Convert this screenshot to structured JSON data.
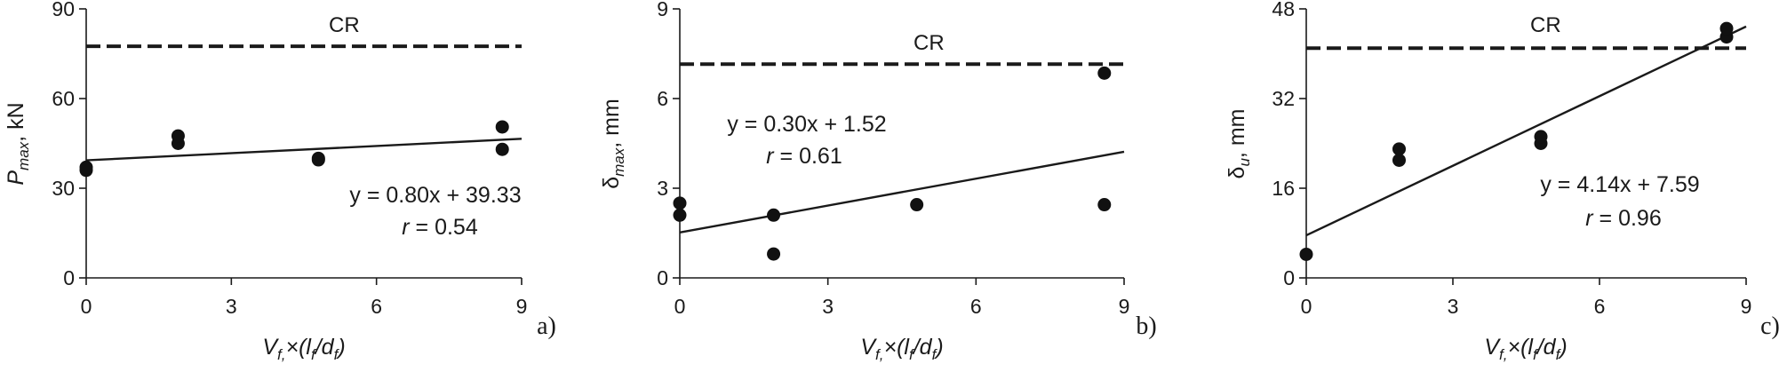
{
  "chart_data": [
    {
      "type": "scatter",
      "panel_label": "a)",
      "ylabel": {
        "sym": "P",
        "sub": "max",
        "unit": ", kN"
      },
      "xlabel": {
        "pre": "V",
        "sub1": "f,",
        "mid": "×(l",
        "sub2": "f",
        "mid2": "/d",
        "sub3": "f",
        "post": ")"
      },
      "xlim": [
        0,
        9
      ],
      "ylim": [
        0,
        90
      ],
      "xticks": [
        0,
        3,
        6,
        9
      ],
      "yticks": [
        0,
        30,
        60,
        90
      ],
      "points": [
        [
          0,
          36
        ],
        [
          0,
          37
        ],
        [
          1.9,
          45
        ],
        [
          1.9,
          47.5
        ],
        [
          4.8,
          39.5
        ],
        [
          4.8,
          40
        ],
        [
          8.6,
          43
        ],
        [
          8.6,
          50.5
        ]
      ],
      "reference": {
        "label": "CR",
        "y": 77.5
      },
      "fit": {
        "slope": 0.8,
        "intercept": 39.33,
        "equation": "y = 0.80x + 39.33",
        "r_label": "r",
        "r_value": " = 0.54"
      }
    },
    {
      "type": "scatter",
      "panel_label": "b)",
      "ylabel": {
        "sym": "δ",
        "sub": "max",
        "unit": ", mm"
      },
      "xlabel": {
        "pre": "V",
        "sub1": "f,",
        "mid": "×(l",
        "sub2": "f",
        "mid2": "/d",
        "sub3": "f",
        "post": ")"
      },
      "xlim": [
        0,
        9
      ],
      "ylim": [
        0,
        9
      ],
      "xticks": [
        0,
        3,
        6,
        9
      ],
      "yticks": [
        0,
        3,
        6,
        9
      ],
      "points": [
        [
          0,
          2.1
        ],
        [
          0,
          2.5
        ],
        [
          1.9,
          0.8
        ],
        [
          1.9,
          2.1
        ],
        [
          4.8,
          2.45
        ],
        [
          8.6,
          2.45
        ],
        [
          8.6,
          6.85
        ]
      ],
      "reference": {
        "label": "CR",
        "y": 7.15
      },
      "fit": {
        "slope": 0.3,
        "intercept": 1.52,
        "equation": "y = 0.30x + 1.52",
        "r_label": "r",
        "r_value": " = 0.61"
      }
    },
    {
      "type": "scatter",
      "panel_label": "c)",
      "ylabel": {
        "sym": "δ",
        "sub": "u",
        "unit": ", mm"
      },
      "xlabel": {
        "pre": "V",
        "sub1": "f,",
        "mid": "×(l",
        "sub2": "f",
        "mid2": "/d",
        "sub3": "f",
        "post": ")"
      },
      "xlim": [
        0,
        9
      ],
      "ylim": [
        0,
        48
      ],
      "xticks": [
        0,
        3,
        6,
        9
      ],
      "yticks": [
        0,
        16,
        32,
        48
      ],
      "points": [
        [
          0,
          4.2
        ],
        [
          1.9,
          21
        ],
        [
          1.9,
          23
        ],
        [
          4.8,
          24
        ],
        [
          4.8,
          25.2
        ],
        [
          8.6,
          43
        ],
        [
          8.6,
          44.5
        ]
      ],
      "reference": {
        "label": "CR",
        "y": 41
      },
      "fit": {
        "slope": 4.14,
        "intercept": 7.59,
        "equation": "y = 4.14x + 7.59",
        "r_label": "r",
        "r_value": " = 0.96"
      }
    }
  ]
}
